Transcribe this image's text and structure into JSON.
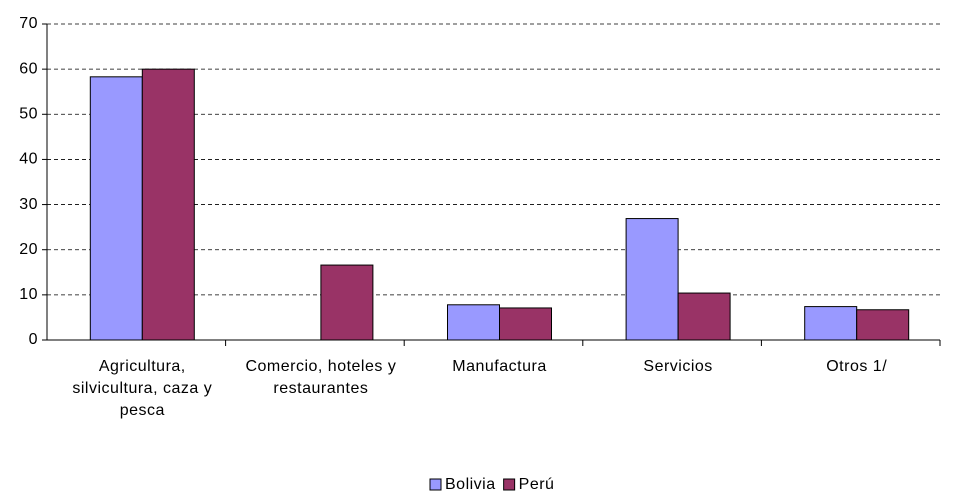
{
  "chart_data": {
    "type": "bar",
    "categories": [
      "Agricultura, silvicultura, caza y pesca",
      "Comercio, hoteles y restaurantes",
      "Manufactura",
      "Servicios",
      "Otros 1/"
    ],
    "series": [
      {
        "name": "Bolivia",
        "color": "#9999ff",
        "values": [
          58.3,
          null,
          7.8,
          26.9,
          7.4
        ]
      },
      {
        "name": "Perú",
        "color": "#993366",
        "values": [
          60,
          16.6,
          7.1,
          10.4,
          6.7
        ]
      }
    ],
    "ylim": [
      0,
      70
    ],
    "yticks": [
      0,
      10,
      20,
      30,
      40,
      50,
      60,
      70
    ],
    "grid": true,
    "legend": "bottom"
  }
}
